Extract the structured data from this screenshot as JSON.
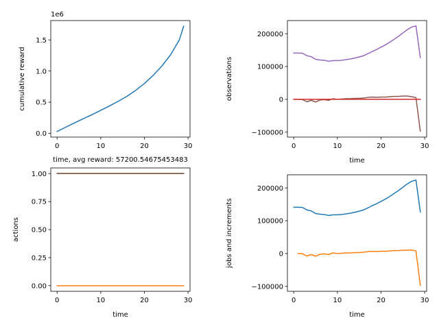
{
  "chart_data": [
    {
      "type": "line",
      "xlabel": "time, avg reward: 57200.54675453483",
      "ylabel": "cumulative reward",
      "offset_text": "1e6",
      "xlim": [
        -1.45,
        30.45
      ],
      "ylim": [
        -0.0596,
        1.81
      ],
      "xticks": [
        0,
        10,
        20,
        30
      ],
      "yticks": [
        0.0,
        0.5,
        1.0,
        1.5
      ],
      "ytick_labels": [
        "0.0",
        "0.5",
        "1.0",
        "1.5"
      ],
      "series": [
        {
          "color": "#1f77b4",
          "x": [
            0,
            2,
            4,
            6,
            8,
            10,
            12,
            14,
            16,
            18,
            20,
            22,
            24,
            26,
            28,
            29
          ],
          "y": [
            0.03,
            0.1,
            0.168,
            0.235,
            0.3,
            0.37,
            0.44,
            0.515,
            0.595,
            0.69,
            0.8,
            0.93,
            1.08,
            1.26,
            1.5,
            1.72
          ]
        }
      ]
    },
    {
      "type": "line",
      "xlabel": "time",
      "ylabel": "observations",
      "xlim": [
        -1.45,
        30.45
      ],
      "ylim": [
        -115000,
        240000
      ],
      "xticks": [
        0,
        10,
        20,
        30
      ],
      "yticks": [
        -100000,
        0,
        100000,
        200000
      ],
      "ytick_labels": [
        "−100000",
        "0",
        "100000",
        "200000"
      ],
      "series": [
        {
          "color": "#9467bd",
          "x": [
            0,
            1,
            2,
            3,
            4,
            5,
            6,
            7,
            8,
            9,
            10,
            11,
            12,
            13,
            14,
            15,
            16,
            17,
            18,
            19,
            20,
            21,
            22,
            23,
            24,
            25,
            26,
            27,
            28,
            29
          ],
          "y": [
            141000,
            141000,
            140500,
            133000,
            130000,
            122000,
            120000,
            119000,
            116000,
            118000,
            118000,
            119000,
            121000,
            123000,
            126000,
            129000,
            133000,
            139000,
            146000,
            152000,
            159000,
            166000,
            174000,
            183000,
            192000,
            202000,
            212000,
            220000,
            224000,
            127000
          ]
        },
        {
          "color": "#8c564b",
          "x": [
            0,
            1,
            2,
            3,
            4,
            5,
            6,
            7,
            8,
            9,
            10,
            11,
            12,
            13,
            14,
            15,
            16,
            17,
            18,
            19,
            20,
            21,
            22,
            23,
            24,
            25,
            26,
            27,
            28,
            29
          ],
          "y": [
            0,
            0,
            -500,
            -7500,
            -3000,
            -8000,
            -2000,
            -1000,
            -3000,
            2000,
            0,
            1000,
            2000,
            2000,
            3000,
            3000,
            4000,
            6000,
            7000,
            6000,
            7000,
            7000,
            8000,
            9000,
            9000,
            10000,
            10000,
            8000,
            5000,
            -97000
          ]
        },
        {
          "color": "#d62728",
          "x": [
            0,
            29
          ],
          "y": [
            0,
            0
          ]
        }
      ]
    },
    {
      "type": "line",
      "xlabel": "time",
      "ylabel": "actions",
      "xlim": [
        -1.45,
        30.45
      ],
      "ylim": [
        -0.05,
        1.05
      ],
      "xticks": [
        0,
        10,
        20,
        30
      ],
      "yticks": [
        0.0,
        0.25,
        0.5,
        0.75,
        1.0
      ],
      "ytick_labels": [
        "0.00",
        "0.25",
        "0.50",
        "0.75",
        "1.00"
      ],
      "series": [
        {
          "color": "#1f77b4",
          "x": [
            0,
            29
          ],
          "y": [
            1,
            1
          ]
        },
        {
          "color": "#2ca02c",
          "x": [
            0,
            29
          ],
          "y": [
            1,
            1
          ]
        },
        {
          "color": "#8c564b",
          "x": [
            0,
            29
          ],
          "y": [
            1,
            1
          ]
        },
        {
          "color": "#ff7f0e",
          "x": [
            0,
            29
          ],
          "y": [
            0,
            0
          ]
        }
      ]
    },
    {
      "type": "line",
      "xlabel": "time",
      "ylabel": "jobs and increments",
      "xlim": [
        -1.45,
        30.45
      ],
      "ylim": [
        -115000,
        240000
      ],
      "xticks": [
        0,
        10,
        20,
        30
      ],
      "yticks": [
        -100000,
        0,
        100000,
        200000
      ],
      "ytick_labels": [
        "−100000",
        "0",
        "100000",
        "200000"
      ],
      "series": [
        {
          "color": "#1f77b4",
          "x": [
            0,
            1,
            2,
            3,
            4,
            5,
            6,
            7,
            8,
            9,
            10,
            11,
            12,
            13,
            14,
            15,
            16,
            17,
            18,
            19,
            20,
            21,
            22,
            23,
            24,
            25,
            26,
            27,
            28,
            29
          ],
          "y": [
            141000,
            141000,
            140500,
            133000,
            130000,
            122000,
            120000,
            119000,
            116000,
            118000,
            118000,
            119000,
            121000,
            123000,
            126000,
            129000,
            133000,
            139000,
            146000,
            152000,
            159000,
            166000,
            174000,
            183000,
            192000,
            202000,
            212000,
            220000,
            224000,
            127000
          ]
        },
        {
          "color": "#ff7f0e",
          "x": [
            1,
            2,
            3,
            4,
            5,
            6,
            7,
            8,
            9,
            10,
            11,
            12,
            13,
            14,
            15,
            16,
            17,
            18,
            19,
            20,
            21,
            22,
            23,
            24,
            25,
            26,
            27,
            28,
            29
          ],
          "y": [
            0,
            -500,
            -7500,
            -3000,
            -8000,
            -2000,
            -1000,
            -3000,
            2000,
            0,
            1000,
            2000,
            2000,
            3000,
            3000,
            4000,
            6000,
            7000,
            6000,
            7000,
            7000,
            8000,
            9000,
            9000,
            10000,
            10000,
            11000,
            8000,
            -97000
          ]
        }
      ]
    }
  ]
}
